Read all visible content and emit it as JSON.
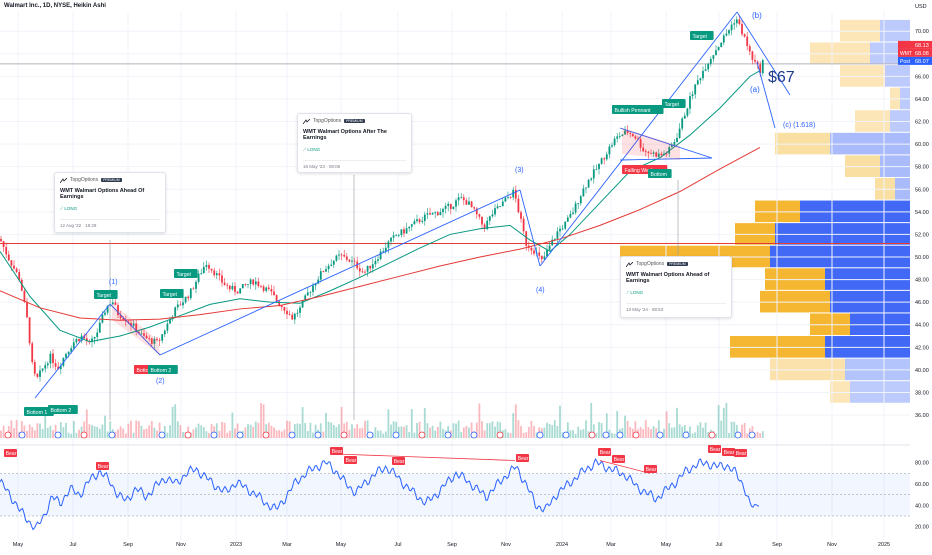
{
  "symbol_title": "Walmart Inc., 1D, NYSE, Heikin Ashi",
  "currency": "USD",
  "price_tags": {
    "last": "68.13",
    "symbol": "WMT",
    "value": "68.08",
    "post_label": "Post",
    "post_value": "68.07"
  },
  "callouts": [
    {
      "brand": "TopgOptions",
      "badge": "PREMIUM",
      "title": "WMT Walmart Options Ahead Of Earnings",
      "direction": "LONG",
      "timestamp": "12 Aug '22 · 19:29"
    },
    {
      "brand": "TopgOptions",
      "badge": "PREMIUM",
      "title": "WMT Walmart Options After The Earnings",
      "direction": "LONG",
      "timestamp": "16 May '23 · 08:06"
    },
    {
      "brand": "TopgOptions",
      "badge": "PREMIUM",
      "title": "WMT Walmart Options Ahead of Earnings",
      "direction": "LONG",
      "timestamp": "13 May '24 · 08:53"
    }
  ],
  "annotations": {
    "target_text": "$67",
    "wave_b": "(b)",
    "wave_a": "(a)",
    "wave_c": "(c) (1.618)",
    "wave_1": "(1)",
    "wave_2": "(2)",
    "wave_3": "(3)",
    "wave_4": "(4)",
    "pattern_labels": [
      "Bottom 1",
      "Bottom 2",
      "Target",
      "Bottom",
      "Bottom 2",
      "Target",
      "Target",
      "Bullish Pennant",
      "Target",
      "Falling Wedge",
      "Bottom",
      "Target"
    ]
  },
  "rsi_labels": [
    "Bear",
    "Bear",
    "Bear",
    "Bear",
    "Bear",
    "Bear",
    "Bear",
    "Bear",
    "Bear",
    "Bear",
    "Bear",
    "Bear"
  ],
  "colors": {
    "up": "#089981",
    "down": "#f23645",
    "rsi": "#2962ff",
    "ma_short": "#089981",
    "ma_long": "#e53935",
    "trend": "#2962ff",
    "vp_up": "#f5b731",
    "vp_down": "#4169f5"
  },
  "chart_data": [
    {
      "type": "line",
      "title": "Walmart Inc., 1D, NYSE, Heikin Ashi",
      "x_ticks": [
        "May",
        "Jul",
        "Sep",
        "Nov",
        "2023",
        "Mar",
        "May",
        "Jul",
        "Sep",
        "Nov",
        "2024",
        "Mar",
        "May",
        "Jul",
        "Sep",
        "Nov",
        "2025"
      ],
      "y_ticks": [
        36.0,
        38.0,
        40.0,
        42.0,
        44.0,
        46.0,
        48.0,
        50.0,
        52.0,
        54.0,
        56.0,
        58.0,
        60.0,
        62.0,
        64.0,
        66.0,
        68.0,
        70.0
      ],
      "ylim": [
        34.5,
        71.7
      ],
      "horizontal_lines": [
        51.2,
        67.1
      ],
      "series": [
        {
          "values": [
            [
              0,
              51.6
            ],
            [
              8,
              50.0
            ],
            [
              14,
              49.0
            ],
            [
              20,
              48.0
            ],
            [
              28,
              44.0
            ],
            [
              32,
              40.5
            ],
            [
              36,
              39.0
            ],
            [
              42,
              40.0
            ],
            [
              50,
              41.2
            ],
            [
              58,
              40.2
            ],
            [
              66,
              41.5
            ],
            [
              74,
              42.5
            ],
            [
              82,
              43.0
            ],
            [
              90,
              42.2
            ],
            [
              98,
              43.5
            ],
            [
              106,
              45.5
            ],
            [
              112,
              46.2
            ],
            [
              118,
              45.0
            ],
            [
              126,
              44.5
            ],
            [
              134,
              43.8
            ],
            [
              142,
              43.0
            ],
            [
              150,
              42.6
            ],
            [
              158,
              42.4
            ],
            [
              166,
              43.8
            ],
            [
              174,
              45.2
            ],
            [
              182,
              46.0
            ],
            [
              190,
              46.8
            ],
            [
              198,
              48.2
            ],
            [
              206,
              49.5
            ],
            [
              214,
              48.7
            ],
            [
              222,
              47.8
            ],
            [
              230,
              47.2
            ],
            [
              238,
              47.0
            ],
            [
              246,
              47.5
            ],
            [
              254,
              47.9
            ],
            [
              262,
              47.4
            ],
            [
              270,
              46.9
            ],
            [
              278,
              46.0
            ],
            [
              286,
              45.3
            ],
            [
              292,
              44.6
            ],
            [
              300,
              45.4
            ],
            [
              308,
              46.8
            ],
            [
              316,
              47.9
            ],
            [
              324,
              48.9
            ],
            [
              332,
              49.6
            ],
            [
              340,
              50.1
            ],
            [
              348,
              49.8
            ],
            [
              356,
              49.3
            ],
            [
              364,
              48.6
            ],
            [
              372,
              49.4
            ],
            [
              380,
              50.3
            ],
            [
              388,
              51.2
            ],
            [
              396,
              51.9
            ],
            [
              404,
              52.3
            ],
            [
              412,
              52.8
            ],
            [
              420,
              53.3
            ],
            [
              428,
              53.7
            ],
            [
              436,
              53.9
            ],
            [
              444,
              54.2
            ],
            [
              452,
              54.6
            ],
            [
              460,
              55.2
            ],
            [
              468,
              54.8
            ],
            [
              476,
              53.8
            ],
            [
              484,
              52.6
            ],
            [
              492,
              53.8
            ],
            [
              500,
              54.5
            ],
            [
              508,
              55.3
            ],
            [
              514,
              55.8
            ],
            [
              520,
              53.5
            ],
            [
              526,
              51.2
            ],
            [
              534,
              50.6
            ],
            [
              542,
              49.6
            ],
            [
              550,
              51.0
            ],
            [
              558,
              52.3
            ],
            [
              566,
              53.0
            ],
            [
              574,
              54.2
            ],
            [
              582,
              55.8
            ],
            [
              590,
              57.0
            ],
            [
              598,
              58.0
            ],
            [
              606,
              59.2
            ],
            [
              614,
              60.3
            ],
            [
              620,
              60.8
            ],
            [
              628,
              61.1
            ],
            [
              636,
              60.6
            ],
            [
              644,
              59.4
            ],
            [
              652,
              59.2
            ],
            [
              660,
              59.0
            ],
            [
              668,
              59.3
            ],
            [
              676,
              60.5
            ],
            [
              684,
              62.5
            ],
            [
              692,
              64.5
            ],
            [
              700,
              66.0
            ],
            [
              708,
              67.3
            ],
            [
              716,
              68.4
            ],
            [
              722,
              69.2
            ],
            [
              728,
              70.0
            ],
            [
              736,
              71.2
            ],
            [
              744,
              69.5
            ],
            [
              750,
              68.0
            ],
            [
              756,
              67.0
            ],
            [
              760,
              66.5
            ],
            [
              764,
              67.7
            ]
          ]
        },
        {
          "values": [
            [
              0,
              50.5
            ],
            [
              30,
              46.5
            ],
            [
              60,
              43.5
            ],
            [
              90,
              42.5
            ],
            [
              120,
              43.0
            ],
            [
              150,
              43.8
            ],
            [
              180,
              44.8
            ],
            [
              210,
              45.8
            ],
            [
              240,
              46.3
            ],
            [
              270,
              46.0
            ],
            [
              300,
              45.9
            ],
            [
              330,
              47.0
            ],
            [
              360,
              48.2
            ],
            [
              390,
              49.5
            ],
            [
              420,
              50.8
            ],
            [
              450,
              52.0
            ],
            [
              480,
              52.5
            ],
            [
              510,
              52.8
            ],
            [
              530,
              51.5
            ],
            [
              550,
              50.5
            ],
            [
              570,
              52.0
            ],
            [
              600,
              54.8
            ],
            [
              630,
              57.6
            ],
            [
              660,
              58.8
            ],
            [
              690,
              60.8
            ],
            [
              720,
              63.2
            ],
            [
              750,
              66.0
            ],
            [
              760,
              66.5
            ]
          ]
        },
        {
          "values": [
            [
              0,
              47.0
            ],
            [
              40,
              45.5
            ],
            [
              80,
              44.6
            ],
            [
              120,
              44.4
            ],
            [
              160,
              44.5
            ],
            [
              200,
              44.9
            ],
            [
              240,
              45.4
            ],
            [
              280,
              45.7
            ],
            [
              320,
              46.5
            ],
            [
              360,
              47.4
            ],
            [
              400,
              48.3
            ],
            [
              440,
              49.2
            ],
            [
              480,
              50.0
            ],
            [
              520,
              50.7
            ],
            [
              560,
              51.6
            ],
            [
              600,
              52.8
            ],
            [
              640,
              54.2
            ],
            [
              680,
              55.8
            ],
            [
              720,
              57.8
            ],
            [
              760,
              59.7
            ]
          ]
        }
      ]
    },
    {
      "type": "line",
      "title": "RSI",
      "y_ticks": [
        20.0,
        40.0,
        60.0,
        80.0
      ],
      "ylim": [
        15,
        90
      ],
      "band": [
        30,
        70
      ],
      "series": [
        {
          "values": [
            [
              0,
              62
            ],
            [
              10,
              50
            ],
            [
              20,
              35
            ],
            [
              30,
              24
            ],
            [
              36,
              18
            ],
            [
              44,
              30
            ],
            [
              52,
              48
            ],
            [
              60,
              42
            ],
            [
              70,
              55
            ],
            [
              80,
              50
            ],
            [
              90,
              64
            ],
            [
              100,
              72
            ],
            [
              110,
              62
            ],
            [
              118,
              50
            ],
            [
              126,
              44
            ],
            [
              136,
              56
            ],
            [
              146,
              48
            ],
            [
              156,
              58
            ],
            [
              166,
              66
            ],
            [
              176,
              60
            ],
            [
              186,
              70
            ],
            [
              196,
              74
            ],
            [
              206,
              66
            ],
            [
              216,
              58
            ],
            [
              226,
              52
            ],
            [
              236,
              62
            ],
            [
              246,
              56
            ],
            [
              256,
              50
            ],
            [
              266,
              42
            ],
            [
              276,
              36
            ],
            [
              286,
              48
            ],
            [
              296,
              62
            ],
            [
              306,
              70
            ],
            [
              316,
              76
            ],
            [
              326,
              80
            ],
            [
              336,
              72
            ],
            [
              346,
              60
            ],
            [
              356,
              52
            ],
            [
              366,
              62
            ],
            [
              376,
              70
            ],
            [
              386,
              76
            ],
            [
              396,
              68
            ],
            [
              406,
              58
            ],
            [
              416,
              50
            ],
            [
              426,
              42
            ],
            [
              436,
              50
            ],
            [
              446,
              60
            ],
            [
              456,
              70
            ],
            [
              466,
              64
            ],
            [
              476,
              56
            ],
            [
              486,
              48
            ],
            [
              496,
              58
            ],
            [
              506,
              68
            ],
            [
              516,
              76
            ],
            [
              526,
              60
            ],
            [
              536,
              40
            ],
            [
              546,
              36
            ],
            [
              556,
              50
            ],
            [
              566,
              58
            ],
            [
              576,
              66
            ],
            [
              586,
              74
            ],
            [
              596,
              80
            ],
            [
              606,
              76
            ],
            [
              616,
              72
            ],
            [
              626,
              68
            ],
            [
              636,
              58
            ],
            [
              646,
              52
            ],
            [
              656,
              46
            ],
            [
              666,
              54
            ],
            [
              676,
              62
            ],
            [
              686,
              72
            ],
            [
              696,
              78
            ],
            [
              706,
              80
            ],
            [
              716,
              76
            ],
            [
              726,
              78
            ],
            [
              736,
              70
            ],
            [
              744,
              58
            ],
            [
              750,
              40
            ],
            [
              756,
              38
            ],
            [
              760,
              46
            ]
          ]
        }
      ]
    }
  ]
}
